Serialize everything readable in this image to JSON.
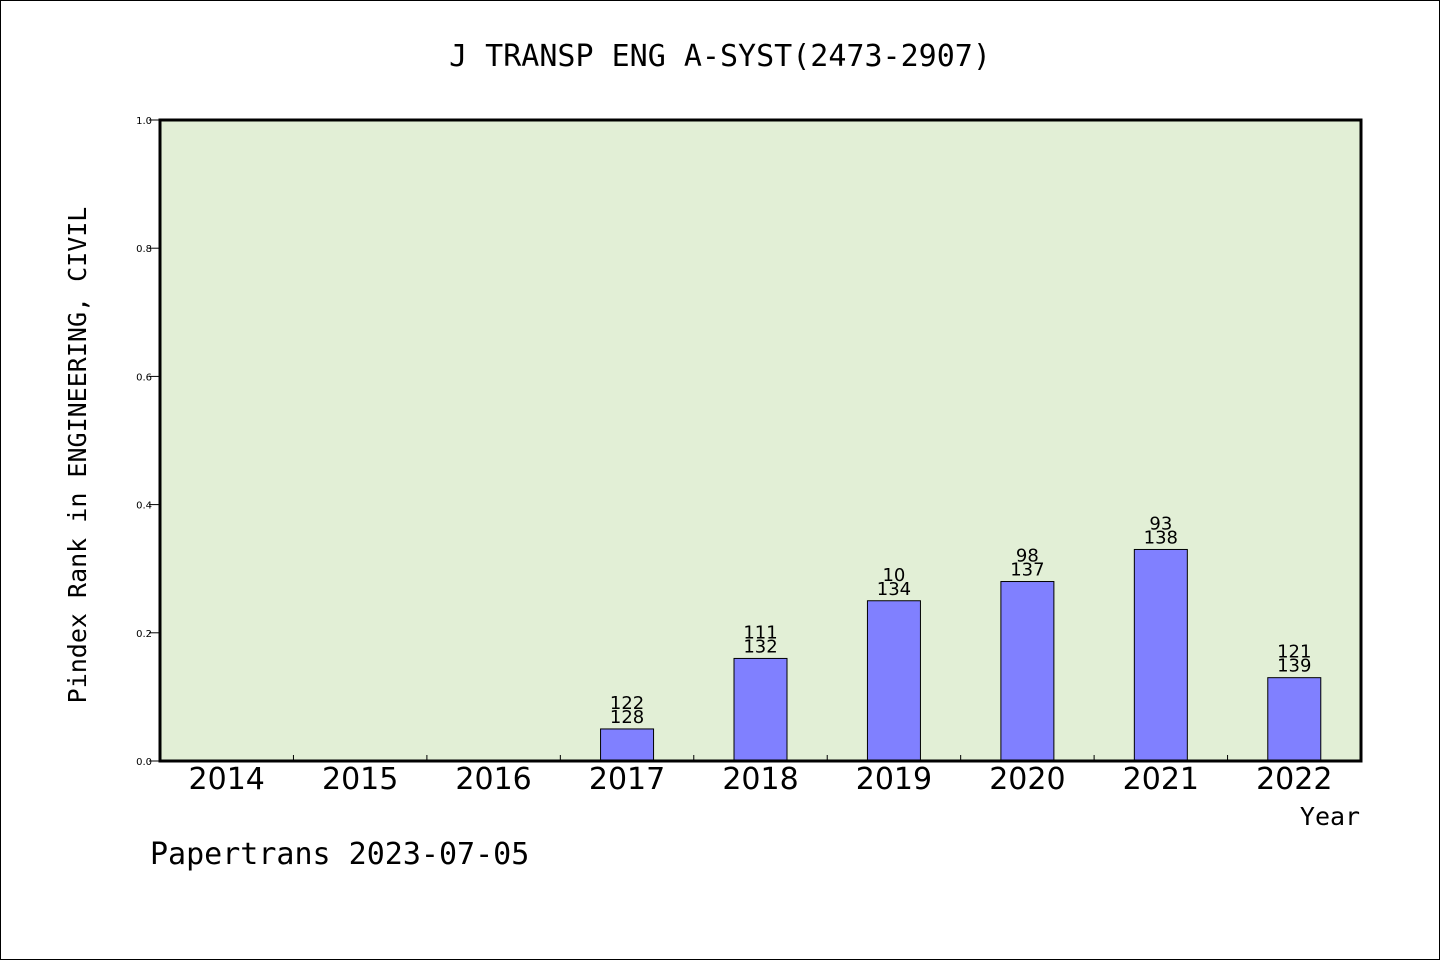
{
  "chart_data": {
    "type": "bar",
    "title": "J TRANSP ENG A-SYST(2473-2907)",
    "xlabel": "Year",
    "ylabel": "Pindex Rank in ENGINEERING, CIVIL",
    "ylim": [
      0,
      1.0
    ],
    "yticks": [
      "0.0",
      "0.2",
      "0.4",
      "0.6",
      "0.8",
      "1.0"
    ],
    "categories": [
      "2014",
      "2015",
      "2016",
      "2017",
      "2018",
      "2019",
      "2020",
      "2021",
      "2022"
    ],
    "values": [
      0,
      0,
      0,
      0.05,
      0.16,
      0.25,
      0.28,
      0.33,
      0.13
    ],
    "label_top": [
      "",
      "",
      "",
      "122",
      "111",
      "10",
      "98",
      "93",
      "121"
    ],
    "label_bottom": [
      "",
      "",
      "",
      "128",
      "132",
      "134",
      "137",
      "138",
      "139"
    ],
    "colors": {
      "plot_background": "#e2efd6",
      "bar_fill": "#8080ff",
      "bar_stroke": "#000000"
    },
    "grid": false
  },
  "footer": {
    "text": "Papertrans 2023-07-05"
  }
}
